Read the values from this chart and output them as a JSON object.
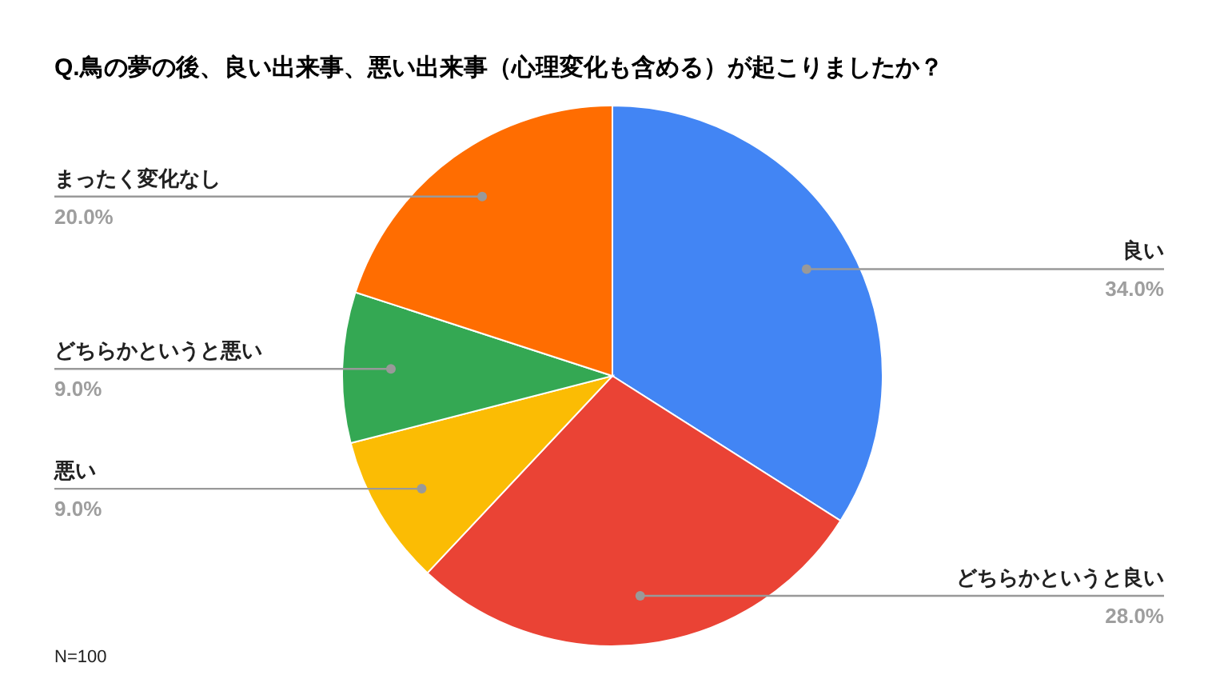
{
  "chart_data": {
    "type": "pie",
    "title": "Q.鳥の夢の後、良い出来事、悪い出来事（心理変化も含める）が起こりましたか？",
    "categories": [
      "良い",
      "どちらかというと良い",
      "悪い",
      "どちらかというと悪い",
      "まったく変化なし"
    ],
    "values": [
      34,
      28,
      9,
      9,
      20
    ],
    "colors": [
      "#4285f4",
      "#ea4335",
      "#fbbc04",
      "#34a853",
      "#ff6d01"
    ],
    "value_labels": [
      "34.0%",
      "28.0%",
      "9.0%",
      "9.0%",
      "20.0%"
    ],
    "annotations": [
      "N=100"
    ]
  }
}
